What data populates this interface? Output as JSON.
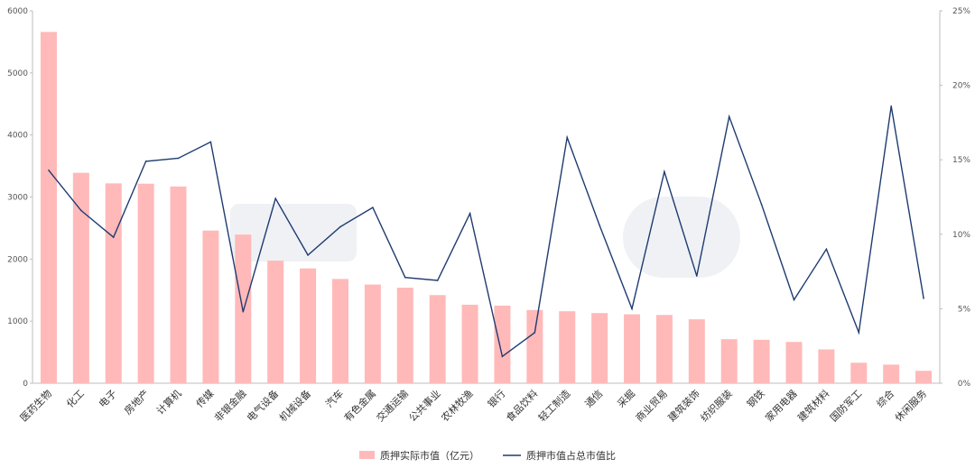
{
  "chart_data": {
    "type": "bar",
    "categories": [
      "医药生物",
      "化工",
      "电子",
      "房地产",
      "计算机",
      "传媒",
      "非银金融",
      "电气设备",
      "机械设备",
      "汽车",
      "有色金属",
      "交通运输",
      "公共事业",
      "农林牧渔",
      "银行",
      "食品饮料",
      "轻工制造",
      "通信",
      "采掘",
      "商业贸易",
      "建筑装饰",
      "纺织服装",
      "钢铁",
      "家用电器",
      "建筑材料",
      "国防军工",
      "综合",
      "休闲服务"
    ],
    "series": [
      {
        "name": "质押实际市值（亿元）",
        "type": "bar",
        "axis": "left",
        "color": "#ffb9b9",
        "values": [
          5660,
          3390,
          3220,
          3215,
          3170,
          2460,
          2395,
          1975,
          1850,
          1680,
          1590,
          1540,
          1420,
          1265,
          1250,
          1180,
          1160,
          1130,
          1110,
          1100,
          1030,
          710,
          700,
          665,
          545,
          330,
          300,
          200
        ]
      },
      {
        "name": "质押市值占总市值比",
        "type": "line",
        "axis": "right",
        "color": "#1f3b70",
        "values": [
          14.3,
          11.6,
          9.8,
          14.9,
          15.1,
          16.2,
          4.8,
          12.4,
          8.6,
          10.5,
          11.8,
          7.1,
          6.9,
          11.4,
          1.8,
          3.4,
          16.5,
          10.6,
          5.0,
          14.2,
          7.2,
          17.9,
          12.0,
          5.6,
          9.0,
          3.4,
          18.6,
          5.7
        ]
      }
    ],
    "y_left": {
      "min": 0,
      "max": 6000,
      "ticks": [
        0,
        1000,
        2000,
        3000,
        4000,
        5000,
        6000
      ]
    },
    "y_right": {
      "min": 0,
      "max": 25,
      "ticks": [
        "0%",
        "5%",
        "10%",
        "15%",
        "20%",
        "25%"
      ]
    },
    "legend_position": "bottom",
    "grid": false
  }
}
